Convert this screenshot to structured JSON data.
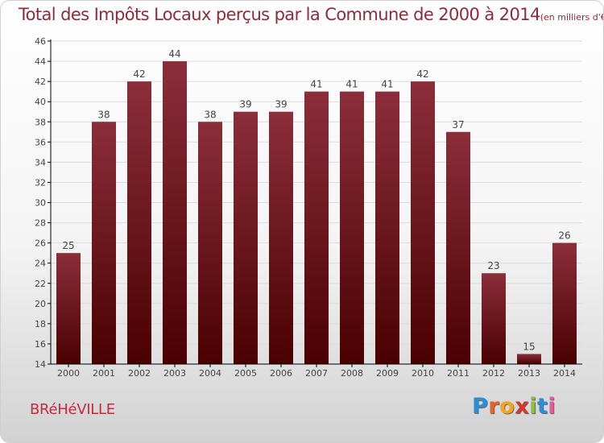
{
  "title": "Total des Impôts Locaux perçus par la Commune de 2000 à 2014",
  "unit_label": "(en milliers d'€)",
  "commune": "BRéHéVILLE",
  "logo": {
    "text": "Proxiti",
    "letter_colors": [
      "#2b8fd6",
      "#e8612a",
      "#f2a51f",
      "#d6362e",
      "#8dbd3a",
      "#2b8fd6",
      "#e85b9b"
    ]
  },
  "colors": {
    "bar_top": "#8b2e3a",
    "bar_bottom": "#4a0000",
    "axis": "#000000",
    "grid": "#dcdcdc",
    "label": "#444444",
    "title": "#8e2b38",
    "commune": "#c72a3f"
  },
  "chart_data": {
    "type": "bar",
    "categories": [
      "2000",
      "2001",
      "2002",
      "2003",
      "2004",
      "2005",
      "2006",
      "2007",
      "2008",
      "2009",
      "2010",
      "2011",
      "2012",
      "2013",
      "2014"
    ],
    "values": [
      25,
      38,
      42,
      44,
      38,
      39,
      39,
      41,
      41,
      41,
      42,
      37,
      23,
      15,
      26
    ],
    "ylim": [
      14,
      46
    ],
    "yticks": [
      14,
      16,
      18,
      20,
      22,
      24,
      26,
      28,
      30,
      32,
      34,
      36,
      38,
      40,
      42,
      44,
      46
    ],
    "grid": "horizontal",
    "data_labels": true
  }
}
